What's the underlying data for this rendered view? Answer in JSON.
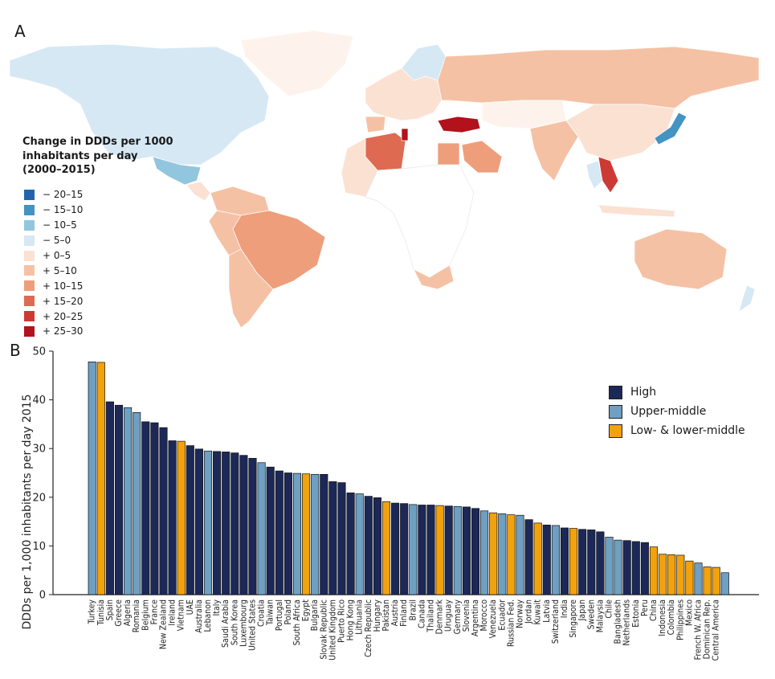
{
  "panel_a_label": "A",
  "panel_b_label": "B",
  "map": {
    "legend_title": "Change in DDDs per 1000 inhabitants per day (2000–2015)",
    "bins": [
      {
        "label": "− 20–15",
        "color": "#2166ac"
      },
      {
        "label": "− 15–10",
        "color": "#4393c3"
      },
      {
        "label": "− 10–5",
        "color": "#92c5de"
      },
      {
        "label": "− 5–0",
        "color": "#d6e8f4"
      },
      {
        "label": "+ 0–5",
        "color": "#fbe1d2"
      },
      {
        "label": "+ 5–10",
        "color": "#f5c1a4"
      },
      {
        "label": "+ 10–15",
        "color": "#ee9e7b"
      },
      {
        "label": "+ 15–20",
        "color": "#de6a52"
      },
      {
        "label": "+ 20–25",
        "color": "#cd3a34"
      },
      {
        "label": "+ 25–30",
        "color": "#b2121b"
      }
    ]
  },
  "chart_data": {
    "type": "bar",
    "ylabel": "DDDs per 1,000 inhabitants  per day 2015",
    "ylim": [
      0,
      50
    ],
    "yticks": [
      0,
      10,
      20,
      30,
      40,
      50
    ],
    "legend_position": "top-right",
    "groups": [
      {
        "key": "high",
        "name": "High",
        "color": "#1c2857"
      },
      {
        "key": "upper",
        "name": "Upper-middle",
        "color": "#6f9fc1"
      },
      {
        "key": "low",
        "name": "Low- & lower-middle",
        "color": "#f2a20d"
      }
    ],
    "bars": [
      {
        "country": "Turkey",
        "value": 47.8,
        "group": "upper"
      },
      {
        "country": "Tunisia",
        "value": 47.7,
        "group": "low"
      },
      {
        "country": "Spain",
        "value": 39.6,
        "group": "high"
      },
      {
        "country": "Greece",
        "value": 38.9,
        "group": "high"
      },
      {
        "country": "Algeria",
        "value": 38.4,
        "group": "upper"
      },
      {
        "country": "Romania",
        "value": 37.4,
        "group": "upper"
      },
      {
        "country": "Belgium",
        "value": 35.5,
        "group": "high"
      },
      {
        "country": "France",
        "value": 35.3,
        "group": "high"
      },
      {
        "country": "New Zealand",
        "value": 34.3,
        "group": "high"
      },
      {
        "country": "Ireland",
        "value": 31.6,
        "group": "high"
      },
      {
        "country": "Vietnam",
        "value": 31.5,
        "group": "low"
      },
      {
        "country": "UAE",
        "value": 30.6,
        "group": "high"
      },
      {
        "country": "Australia",
        "value": 29.9,
        "group": "high"
      },
      {
        "country": "Lebanon",
        "value": 29.5,
        "group": "upper"
      },
      {
        "country": "Italy",
        "value": 29.4,
        "group": "high"
      },
      {
        "country": "Saudi Arabia",
        "value": 29.3,
        "group": "high"
      },
      {
        "country": "South Korea",
        "value": 29.1,
        "group": "high"
      },
      {
        "country": "Luxembourg",
        "value": 28.6,
        "group": "high"
      },
      {
        "country": "United States",
        "value": 28.0,
        "group": "high"
      },
      {
        "country": "Croatia",
        "value": 27.1,
        "group": "upper"
      },
      {
        "country": "Taiwan",
        "value": 26.2,
        "group": "high"
      },
      {
        "country": "Portugal",
        "value": 25.4,
        "group": "high"
      },
      {
        "country": "Poland",
        "value": 25.0,
        "group": "high"
      },
      {
        "country": "South Africa",
        "value": 24.9,
        "group": "upper"
      },
      {
        "country": "Egypt",
        "value": 24.8,
        "group": "low"
      },
      {
        "country": "Bulgaria",
        "value": 24.7,
        "group": "upper"
      },
      {
        "country": "Slovak Republic",
        "value": 24.7,
        "group": "high"
      },
      {
        "country": "United Kingdom",
        "value": 23.2,
        "group": "high"
      },
      {
        "country": "Puerto Rico",
        "value": 23.0,
        "group": "high"
      },
      {
        "country": "Hong Kong",
        "value": 20.9,
        "group": "high"
      },
      {
        "country": "Lithuania",
        "value": 20.7,
        "group": "upper"
      },
      {
        "country": "Czech Republic",
        "value": 20.2,
        "group": "high"
      },
      {
        "country": "Hungary",
        "value": 19.9,
        "group": "high"
      },
      {
        "country": "Pakistan",
        "value": 19.1,
        "group": "low"
      },
      {
        "country": "Austria",
        "value": 18.8,
        "group": "high"
      },
      {
        "country": "Finland",
        "value": 18.7,
        "group": "high"
      },
      {
        "country": "Brazil",
        "value": 18.5,
        "group": "upper"
      },
      {
        "country": "Canada",
        "value": 18.4,
        "group": "high"
      },
      {
        "country": "Thailand",
        "value": 18.4,
        "group": "high"
      },
      {
        "country": "Denmark",
        "value": 18.3,
        "group": "low"
      },
      {
        "country": "Uruguay",
        "value": 18.2,
        "group": "high"
      },
      {
        "country": "Germany",
        "value": 18.1,
        "group": "upper"
      },
      {
        "country": "Slovenia",
        "value": 18.0,
        "group": "high"
      },
      {
        "country": "Argentina",
        "value": 17.7,
        "group": "high"
      },
      {
        "country": "Morocco",
        "value": 17.2,
        "group": "upper"
      },
      {
        "country": "Venezuela",
        "value": 16.8,
        "group": "low"
      },
      {
        "country": "Ecuador",
        "value": 16.6,
        "group": "upper"
      },
      {
        "country": "Russian Fed.",
        "value": 16.4,
        "group": "low"
      },
      {
        "country": "Norway",
        "value": 16.3,
        "group": "upper"
      },
      {
        "country": "Jordan",
        "value": 15.4,
        "group": "high"
      },
      {
        "country": "Kuwait",
        "value": 14.7,
        "group": "low"
      },
      {
        "country": "Latvia",
        "value": 14.3,
        "group": "high"
      },
      {
        "country": "Switzerland",
        "value": 14.2,
        "group": "upper"
      },
      {
        "country": "India",
        "value": 13.7,
        "group": "high"
      },
      {
        "country": "Singapore",
        "value": 13.6,
        "group": "low"
      },
      {
        "country": "Japan",
        "value": 13.4,
        "group": "high"
      },
      {
        "country": "Sweden",
        "value": 13.3,
        "group": "high"
      },
      {
        "country": "Malaysia",
        "value": 12.9,
        "group": "high"
      },
      {
        "country": "Chile",
        "value": 11.8,
        "group": "upper"
      },
      {
        "country": "Bangladesh",
        "value": 11.2,
        "group": "upper"
      },
      {
        "country": "Netherlands",
        "value": 11.1,
        "group": "high"
      },
      {
        "country": "Estonia",
        "value": 10.9,
        "group": "high"
      },
      {
        "country": "Peru",
        "value": 10.7,
        "group": "high"
      },
      {
        "country": "China",
        "value": 9.8,
        "group": "low"
      },
      {
        "country": "Indonesia",
        "value": 8.3,
        "group": "low"
      },
      {
        "country": "Colombia",
        "value": 8.2,
        "group": "low"
      },
      {
        "country": "Philippines",
        "value": 8.1,
        "group": "low"
      },
      {
        "country": "Mexico",
        "value": 6.9,
        "group": "low"
      },
      {
        "country": "French W. Africa",
        "value": 6.5,
        "group": "upper"
      },
      {
        "country": "Dominican Rep.",
        "value": 5.7,
        "group": "low"
      },
      {
        "country": "Central America",
        "value": 5.6,
        "group": "low"
      },
      {
        "country": "",
        "value": 4.5,
        "group": "upper"
      }
    ]
  }
}
